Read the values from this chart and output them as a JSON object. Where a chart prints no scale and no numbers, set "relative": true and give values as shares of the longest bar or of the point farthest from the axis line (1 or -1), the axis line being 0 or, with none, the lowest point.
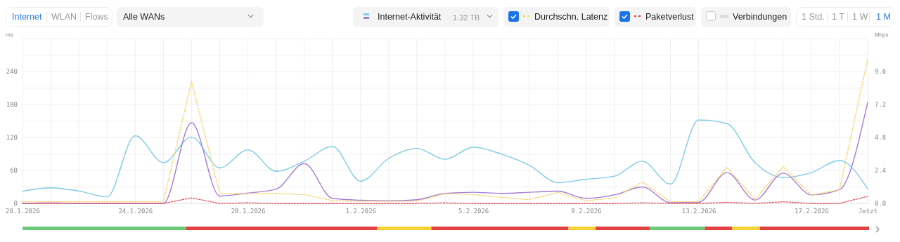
{
  "chart_data": [
    {
      "type": "line",
      "ylabel": "ms",
      "y2label": "Mbps",
      "annotations": [
        "Internet",
        "WLAN",
        "Flows",
        "Alle WANs",
        "Internet-Aktivität",
        "1.32 TB",
        "Verbindungen",
        "1 Std.",
        "1 T",
        "1 W",
        "1 M"
      ],
      "x": [
        "2026-01-20",
        "2026-01-21",
        "2026-01-22",
        "2026-01-23",
        "2026-01-24",
        "2026-01-25",
        "2026-01-26",
        "2026-01-27",
        "2026-01-28",
        "2026-01-29",
        "2026-01-30",
        "2026-01-31",
        "2026-02-01",
        "2026-02-02",
        "2026-02-03",
        "2026-02-04",
        "2026-02-05",
        "2026-02-06",
        "2026-02-07",
        "2026-02-08",
        "2026-02-09",
        "2026-02-10",
        "2026-02-11",
        "2026-02-12",
        "2026-02-13",
        "2026-02-14",
        "2026-02-15",
        "2026-02-16",
        "2026-02-17",
        "2026-02-18",
        "2026-02-19"
      ],
      "xlim": [
        "2026-01-20",
        "2026-02-19"
      ],
      "xticks": [
        {
          "value": "2026-01-20",
          "label": "20.1.2026"
        },
        {
          "value": "2026-01-21",
          "label": null
        },
        {
          "value": "2026-01-22",
          "label": null
        },
        {
          "value": "2026-01-23",
          "label": null
        },
        {
          "value": "2026-01-24",
          "label": "24.1.2026"
        },
        {
          "value": "2026-01-25",
          "label": null
        },
        {
          "value": "2026-01-26",
          "label": null
        },
        {
          "value": "2026-01-27",
          "label": null
        },
        {
          "value": "2026-01-28",
          "label": "28.1.2026"
        },
        {
          "value": "2026-01-29",
          "label": null
        },
        {
          "value": "2026-01-30",
          "label": null
        },
        {
          "value": "2026-01-31",
          "label": null
        },
        {
          "value": "2026-02-01",
          "label": "1.2.2026"
        },
        {
          "value": "2026-02-02",
          "label": null
        },
        {
          "value": "2026-02-03",
          "label": null
        },
        {
          "value": "2026-02-04",
          "label": null
        },
        {
          "value": "2026-02-05",
          "label": "5.2.2026"
        },
        {
          "value": "2026-02-06",
          "label": null
        },
        {
          "value": "2026-02-07",
          "label": null
        },
        {
          "value": "2026-02-08",
          "label": null
        },
        {
          "value": "2026-02-09",
          "label": "9.2.2026"
        },
        {
          "value": "2026-02-10",
          "label": null
        },
        {
          "value": "2026-02-11",
          "label": null
        },
        {
          "value": "2026-02-12",
          "label": null
        },
        {
          "value": "2026-02-13",
          "label": "13.2.2026"
        },
        {
          "value": "2026-02-14",
          "label": null
        },
        {
          "value": "2026-02-15",
          "label": null
        },
        {
          "value": "2026-02-16",
          "label": null
        },
        {
          "value": "2026-02-17",
          "label": "17.2.2026"
        },
        {
          "value": "2026-02-18",
          "label": null
        },
        {
          "value": "2026-02-19",
          "label": "Jetzt"
        }
      ],
      "ylim": [
        0,
        300
      ],
      "yticks": [
        0,
        {
          "value": 30,
          "label": null
        },
        60,
        {
          "value": 90,
          "label": null
        },
        120,
        {
          "value": 150,
          "label": null
        },
        180,
        {
          "value": 210,
          "label": null
        },
        240,
        {
          "value": 270,
          "label": null
        },
        {
          "value": 300,
          "label": null
        }
      ],
      "y2lim": [
        0,
        12
      ],
      "y2ticks": [
        {
          "value": 0,
          "label": "0.0"
        },
        {
          "value": 1.2,
          "label": null
        },
        {
          "value": 2.4,
          "label": "2.4"
        },
        {
          "value": 3.6,
          "label": null
        },
        {
          "value": 4.8,
          "label": "4.8"
        },
        {
          "value": 6,
          "label": null
        },
        {
          "value": 7.2,
          "label": "7.2"
        },
        {
          "value": 8.4,
          "label": null
        },
        {
          "value": 9.6,
          "label": "9.6"
        },
        {
          "value": 10.8,
          "label": null
        },
        {
          "value": 12,
          "label": null
        }
      ],
      "grid": true,
      "legend": "top right",
      "series": [
        {
          "color": "#7ecbe6",
          "axis": "y2",
          "line_style": "solid",
          "values": [
            0.89,
            1.14,
            0.9,
            0.48,
            4.93,
            2.97,
            4.83,
            2.59,
            3.9,
            2.34,
            3.07,
            4.15,
            1.62,
            3.28,
            4.0,
            3.21,
            4.1,
            3.59,
            2.76,
            1.51,
            1.76,
            1.97,
            3.07,
            1.41,
            6.08,
            5.81,
            2.97,
            1.89,
            2.24,
            3.13,
            1.06
          ]
        },
        {
          "color": "#a57bd6",
          "axis": "y2",
          "line_style": "solid",
          "values": [
            0,
            0.04,
            0,
            0,
            0,
            0,
            5.87,
            0.54,
            0.75,
            1.04,
            2.9,
            0.37,
            0.23,
            0.19,
            0.27,
            0.73,
            0.81,
            0.73,
            0.81,
            0.89,
            0.37,
            0.62,
            1.2,
            0.06,
            0.08,
            2.24,
            0.25,
            2.2,
            0.62,
            1.0,
            7.36
          ]
        },
        {
          "name": "Durchschn. Latenz",
          "color": "#f5d36a",
          "axis": "y",
          "line_style": "dotted",
          "values": [
            3,
            3,
            3,
            3,
            3,
            3,
            222,
            18,
            18,
            18,
            16,
            5,
            4,
            4,
            4,
            18,
            16,
            11,
            7,
            20,
            5,
            10,
            39,
            3,
            3,
            66,
            7,
            67,
            15,
            25,
            263
          ]
        },
        {
          "name": "Paketverlust",
          "color": "#e0505a",
          "axis": "y",
          "line_style": "dotted",
          "values": [
            0,
            0,
            0,
            0,
            0,
            0,
            10,
            0,
            1,
            0,
            0,
            0,
            0,
            0,
            0,
            1,
            0,
            0,
            0,
            0,
            0,
            0,
            1,
            0,
            0,
            2,
            0,
            3,
            0,
            0,
            13
          ]
        }
      ]
    },
    {
      "type": "bar",
      "orientation": "horizontal",
      "stacked": true,
      "relative": true,
      "categories": [
        null
      ],
      "series": [
        {
          "color": "#6acb7a",
          "values": [
            0.193
          ]
        },
        {
          "color": "#e34141",
          "values": [
            0.226
          ]
        },
        {
          "color": "#f5d233",
          "values": [
            0.064
          ]
        },
        {
          "color": "#e34141",
          "values": [
            0.162
          ]
        },
        {
          "color": "#f5d233",
          "values": [
            0.032
          ]
        },
        {
          "color": "#e34141",
          "values": [
            0.064
          ]
        },
        {
          "color": "#6acb7a",
          "values": [
            0.065
          ]
        },
        {
          "color": "#e34141",
          "values": [
            0.032
          ]
        },
        {
          "color": "#f5d233",
          "values": [
            0.033
          ]
        },
        {
          "color": "#e34141",
          "values": [
            0.129
          ]
        }
      ]
    }
  ]
}
